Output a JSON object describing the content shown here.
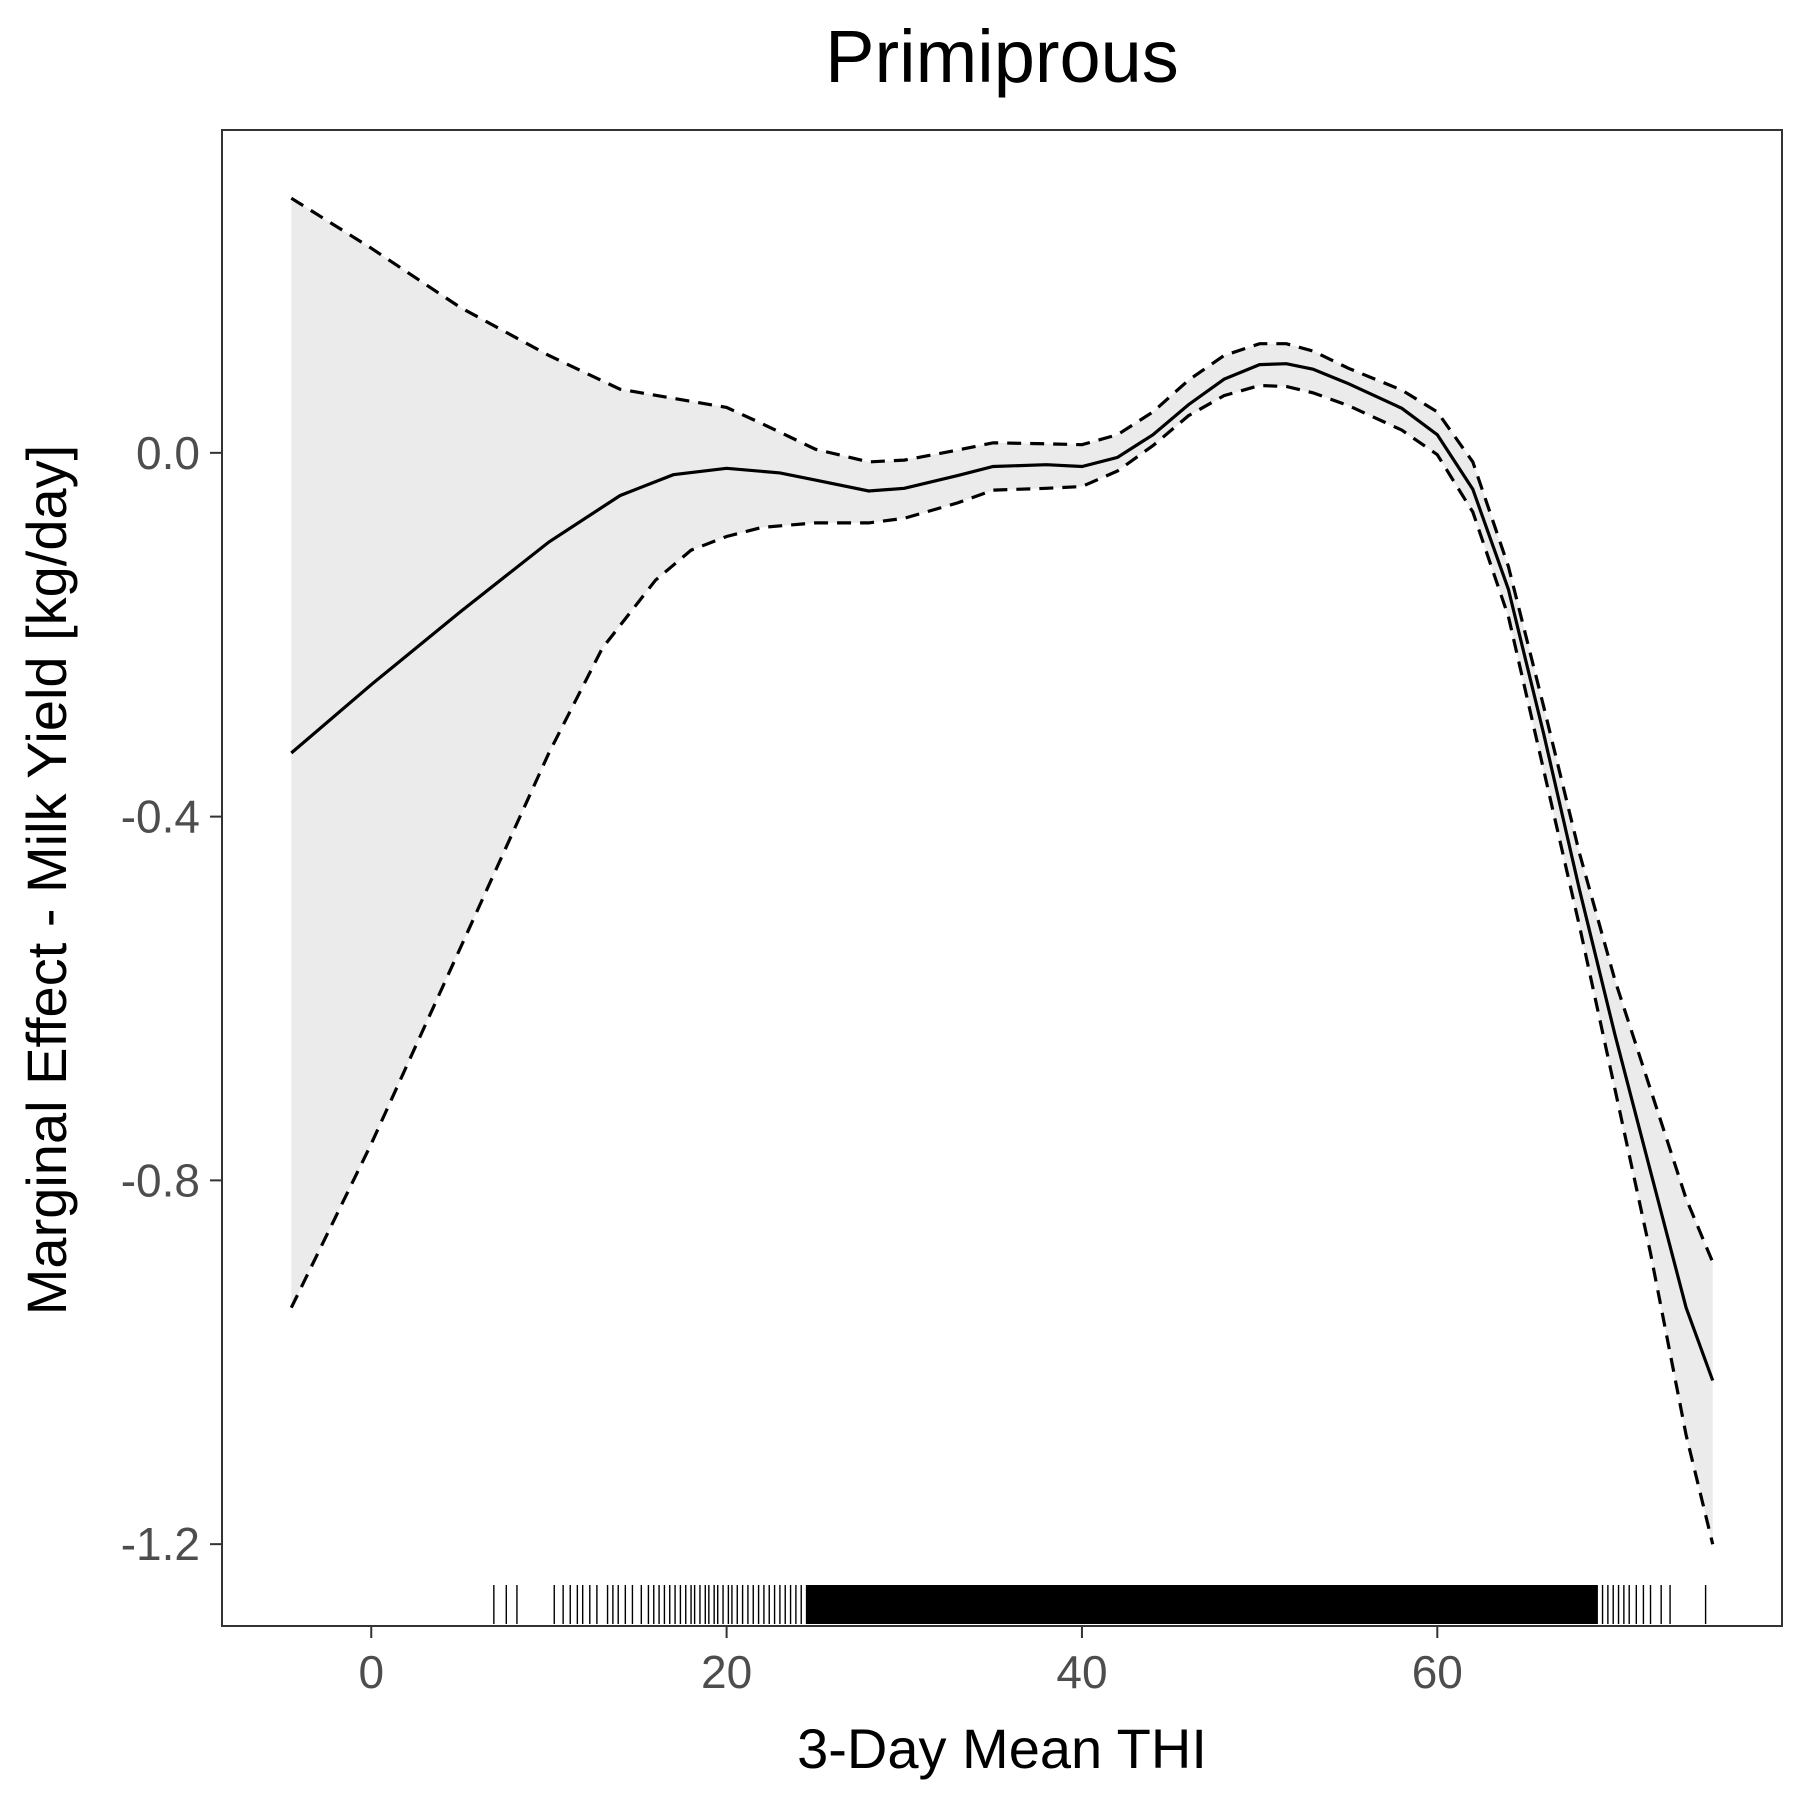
{
  "chart_data": {
    "type": "line",
    "title": "Primiprous",
    "xlabel": "3-Day Mean THI",
    "ylabel": "Marginal Effect - Milk Yield [kg/day]",
    "xlim": [
      -8.4,
      79.4
    ],
    "ylim": [
      -1.29,
      0.355
    ],
    "xticks": [
      0,
      20,
      40,
      60
    ],
    "yticks": [
      0.0,
      -0.4,
      -0.8,
      -1.2
    ],
    "xtick_labels": [
      "0",
      "20",
      "40",
      "60"
    ],
    "ytick_labels": [
      "0.0",
      "-0.4",
      "-0.8",
      "-1.2"
    ],
    "grid": false,
    "legend": "none",
    "colors": {
      "line": "#000000",
      "ribbon": "#ebebeb",
      "tick_label": "#4d4d4d",
      "panel_border": "#333333"
    },
    "series": [
      {
        "role": "estimate",
        "x": [
          -4.5,
          0,
          5,
          10,
          14,
          17,
          20,
          23,
          25,
          28,
          30,
          33,
          35,
          38,
          40,
          42,
          44,
          46,
          48,
          50,
          51.5,
          53,
          55,
          58,
          60,
          62,
          64,
          66,
          68,
          70,
          72,
          74,
          75.5
        ],
        "y": [
          -0.33,
          -0.255,
          -0.175,
          -0.098,
          -0.047,
          -0.024,
          -0.017,
          -0.022,
          -0.03,
          -0.042,
          -0.039,
          -0.025,
          -0.015,
          -0.013,
          -0.015,
          -0.005,
          0.02,
          0.053,
          0.081,
          0.097,
          0.098,
          0.092,
          0.076,
          0.049,
          0.02,
          -0.04,
          -0.15,
          -0.31,
          -0.48,
          -0.64,
          -0.79,
          -0.94,
          -1.02
        ]
      },
      {
        "role": "upper",
        "x": [
          -4.5,
          0,
          5,
          10,
          14,
          17,
          20,
          22,
          25,
          28,
          30,
          33,
          35,
          38,
          40,
          42,
          44,
          46,
          48,
          50,
          51.5,
          53,
          55,
          58,
          60,
          62,
          64,
          66,
          68,
          70,
          72,
          74,
          75.5
        ],
        "y": [
          0.28,
          0.225,
          0.16,
          0.107,
          0.07,
          0.06,
          0.05,
          0.032,
          0.004,
          -0.01,
          -0.008,
          0.003,
          0.011,
          0.01,
          0.009,
          0.02,
          0.045,
          0.08,
          0.107,
          0.12,
          0.12,
          0.112,
          0.093,
          0.069,
          0.045,
          -0.01,
          -0.125,
          -0.28,
          -0.44,
          -0.58,
          -0.7,
          -0.82,
          -0.89
        ]
      },
      {
        "role": "lower",
        "x": [
          -4.5,
          0,
          5,
          10,
          13,
          16,
          18,
          20,
          22,
          25,
          28,
          30,
          33,
          35,
          38,
          40,
          42,
          44,
          46,
          48,
          50,
          51.5,
          53,
          55,
          58,
          60,
          62,
          64,
          66,
          68,
          70,
          72,
          74,
          75.5
        ],
        "y": [
          -0.94,
          -0.76,
          -0.545,
          -0.33,
          -0.215,
          -0.14,
          -0.107,
          -0.092,
          -0.082,
          -0.077,
          -0.077,
          -0.072,
          -0.055,
          -0.041,
          -0.039,
          -0.037,
          -0.02,
          0.008,
          0.041,
          0.063,
          0.074,
          0.073,
          0.066,
          0.052,
          0.025,
          -0.002,
          -0.065,
          -0.18,
          -0.35,
          -0.52,
          -0.7,
          -0.88,
          -1.08,
          -1.2
        ]
      }
    ],
    "rug": {
      "sparse": [
        6.9,
        7.6,
        8.2,
        10.3,
        10.8,
        11.2,
        11.6,
        11.9,
        12.3,
        12.7,
        13.3,
        13.6,
        13.9,
        14.3,
        14.7,
        15.2,
        15.6,
        15.9,
        16.2,
        16.5,
        16.8,
        17.1,
        17.4,
        17.7,
        18.0,
        18.2,
        18.5,
        18.8,
        19.0,
        19.3,
        19.5,
        19.8,
        20.1,
        20.3,
        20.6,
        20.9,
        21.2,
        21.5,
        21.8,
        22.1,
        22.4,
        22.7,
        23.0,
        23.3,
        23.6,
        23.9,
        24.2,
        24.5,
        69.0,
        69.3,
        69.6,
        69.9,
        70.2,
        70.5,
        70.8,
        71.2,
        71.6,
        72.0,
        72.6,
        73.1,
        75.1
      ],
      "dense_range": [
        24.5,
        69.0
      ]
    }
  }
}
